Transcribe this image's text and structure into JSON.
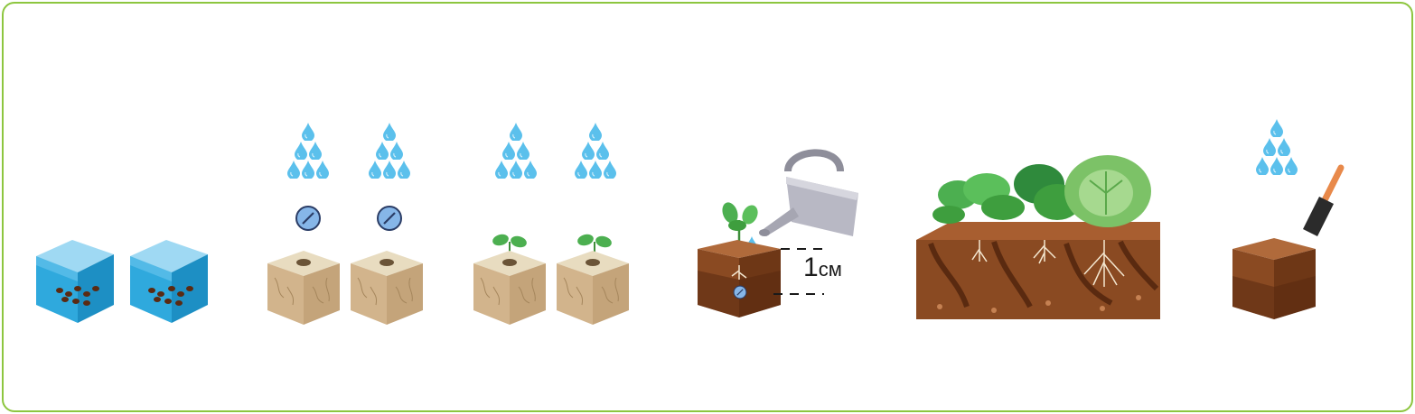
{
  "diagram": {
    "colors": {
      "frame": "#8dc63f",
      "water": "#2fa9dd",
      "drop": "#5bc0ec",
      "cube": "#d2b48c",
      "soil": "#7a3e1c",
      "leaf": "#4caf50",
      "tablet": "#86b6e8"
    },
    "measurement": {
      "number": "1",
      "unit": "см"
    },
    "steps": [
      {
        "name": "soak-seeds",
        "icons": [
          "water-cube-icon",
          "seeds-icon"
        ]
      },
      {
        "name": "wet-cubes-add-tablets",
        "icons": [
          "water-drops-icon",
          "tablet-icon",
          "rockwool-cube-icon"
        ]
      },
      {
        "name": "seedlings-in-cubes",
        "icons": [
          "water-drops-icon",
          "seedling-icon",
          "rockwool-cube-icon"
        ]
      },
      {
        "name": "transplant-and-water",
        "icons": [
          "watering-can-icon",
          "seedling-icon",
          "soil-block-icon",
          "tablet-icon"
        ]
      },
      {
        "name": "mature-plants",
        "icons": [
          "cabbage-icon",
          "lettuce-icon",
          "roots-icon",
          "soil-bed-icon"
        ]
      },
      {
        "name": "soil-and-trowel",
        "icons": [
          "water-drops-icon",
          "trowel-icon",
          "soil-block-icon"
        ]
      }
    ]
  }
}
